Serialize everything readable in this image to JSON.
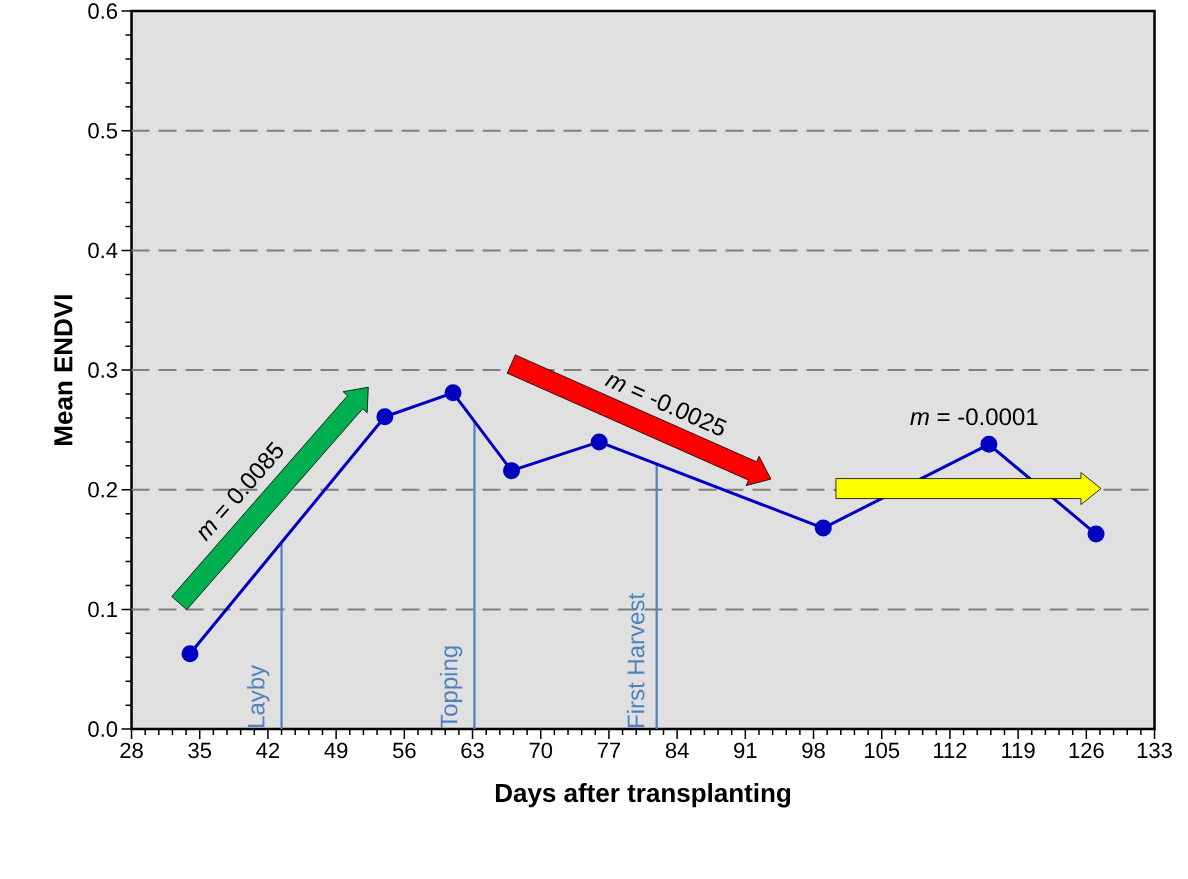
{
  "chart_data": {
    "type": "line",
    "xlabel": "Days after transplanting",
    "ylabel": "Mean  ENDVI",
    "x": [
      34,
      54,
      61,
      67,
      76,
      99,
      116,
      127
    ],
    "series": [
      {
        "color": "#0000c0",
        "values": [
          0.063,
          0.261,
          0.281,
          0.216,
          0.24,
          0.168,
          0.238,
          0.163
        ]
      }
    ],
    "marker": "circle",
    "line_style": "solid",
    "grid": "y",
    "xlim": [
      28,
      133
    ],
    "xticks": [
      28,
      35,
      42,
      49,
      56,
      63,
      70,
      77,
      84,
      91,
      98,
      105,
      112,
      119,
      126,
      133
    ],
    "ylim": [
      0,
      0.6
    ],
    "yticks": [
      {
        "value": 0,
        "label": "0.0"
      },
      {
        "value": 0.1,
        "label": "0.1"
      },
      {
        "value": 0.2,
        "label": "0.2"
      },
      {
        "value": 0.3,
        "label": "0.3"
      },
      {
        "value": 0.4,
        "label": "0.4"
      },
      {
        "value": 0.5,
        "label": "0.5"
      },
      {
        "value": 0.6,
        "label": "0.6"
      }
    ],
    "ref_lines": [
      {
        "axis": "x",
        "value": 43.4,
        "label": "Layby",
        "color": "#4f81bd"
      },
      {
        "axis": "x",
        "value": 63.2,
        "label": "Topping",
        "color": "#4f81bd"
      },
      {
        "axis": "x",
        "value": 81.9,
        "label": "First Harvest",
        "color": "#4f81bd"
      }
    ],
    "annotations": [
      "*m* = 0.0085",
      "*m* = -0.0025",
      "*m* = -0.0001"
    ]
  }
}
